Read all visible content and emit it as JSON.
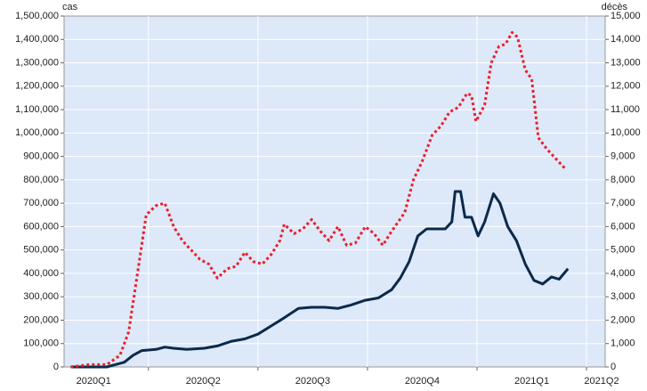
{
  "chart_data": {
    "type": "line",
    "y_label": "cas",
    "y2_label": "décès",
    "xlim": [
      0.23,
      5.17
    ],
    "xticks": [
      {
        "value": 0,
        "label": "2020Q1"
      },
      {
        "value": 1,
        "label": "2020Q2"
      },
      {
        "value": 2,
        "label": "2020Q3"
      },
      {
        "value": 3,
        "label": "2020Q4"
      },
      {
        "value": 4,
        "label": "2021Q1"
      },
      {
        "value": 5,
        "label": "2021Q2"
      }
    ],
    "ylim": [
      0,
      1500000
    ],
    "yticks": [
      0,
      {
        "value": 100000,
        "label": "100,000"
      },
      {
        "value": 200000,
        "label": "200,000"
      },
      {
        "value": 300000,
        "label": "300,000"
      },
      {
        "value": 400000,
        "label": "400,000"
      },
      {
        "value": 500000,
        "label": "500,000"
      },
      {
        "value": 600000,
        "label": "600,000"
      },
      {
        "value": 700000,
        "label": "700,000"
      },
      {
        "value": 800000,
        "label": "800,000"
      },
      {
        "value": 900000,
        "label": "900,000"
      },
      {
        "value": 1000000,
        "label": "1,000,000"
      },
      {
        "value": 1100000,
        "label": "1,100,000"
      },
      {
        "value": 1200000,
        "label": "1,200,000"
      },
      {
        "value": 1300000,
        "label": "1,300,000"
      },
      {
        "value": 1400000,
        "label": "1,400,000"
      },
      {
        "value": 1500000,
        "label": "1,500,000"
      }
    ],
    "y2lim": [
      0,
      15000
    ],
    "y2ticks": [
      0,
      {
        "value": 1000,
        "label": "1,000"
      },
      {
        "value": 2000,
        "label": "2,000"
      },
      {
        "value": 3000,
        "label": "3,000"
      },
      {
        "value": 4000,
        "label": "4,000"
      },
      {
        "value": 5000,
        "label": "5,000"
      },
      {
        "value": 6000,
        "label": "6,000"
      },
      {
        "value": 7000,
        "label": "7,000"
      },
      {
        "value": 8000,
        "label": "8,000"
      },
      {
        "value": 9000,
        "label": "9,000"
      },
      {
        "value": 10000,
        "label": "10,000"
      },
      {
        "value": 11000,
        "label": "11,000"
      },
      {
        "value": 12000,
        "label": "12,000"
      },
      {
        "value": 13000,
        "label": "13,000"
      },
      {
        "value": 14000,
        "label": "14,000"
      },
      {
        "value": 15000,
        "label": "15,000"
      }
    ],
    "grid": true,
    "series": [
      {
        "color": "#0b2a4a",
        "style": "solid",
        "x": [
          0.29,
          0.46,
          0.62,
          0.78,
          0.86,
          0.94,
          1.07,
          1.15,
          1.23,
          1.35,
          1.51,
          1.63,
          1.76,
          1.88,
          2.0,
          2.12,
          2.24,
          2.37,
          2.49,
          2.61,
          2.73,
          2.85,
          2.98,
          3.1,
          3.22,
          3.3,
          3.38,
          3.46,
          3.54,
          3.63,
          3.71,
          3.77,
          3.8,
          3.85,
          3.89,
          3.95,
          4.01,
          4.07,
          4.15,
          4.21,
          4.28,
          4.36,
          4.44,
          4.52,
          4.6,
          4.68,
          4.75,
          4.83
        ],
        "values": [
          0,
          0,
          0,
          20000,
          50000,
          70000,
          75000,
          85000,
          80000,
          75000,
          80000,
          90000,
          110000,
          120000,
          140000,
          175000,
          210000,
          250000,
          255000,
          255000,
          250000,
          265000,
          285000,
          295000,
          330000,
          380000,
          450000,
          560000,
          590000,
          590000,
          590000,
          620000,
          750000,
          750000,
          640000,
          640000,
          560000,
          620000,
          740000,
          700000,
          600000,
          540000,
          440000,
          370000,
          355000,
          385000,
          375000,
          420000
        ]
      },
      {
        "color": "#e8202a",
        "style": "dotted",
        "axis": "y2",
        "x": [
          0.29,
          0.46,
          0.62,
          0.74,
          0.82,
          0.9,
          0.98,
          1.07,
          1.15,
          1.23,
          1.31,
          1.39,
          1.47,
          1.55,
          1.63,
          1.72,
          1.8,
          1.88,
          1.96,
          2.04,
          2.12,
          2.2,
          2.24,
          2.33,
          2.41,
          2.49,
          2.57,
          2.65,
          2.73,
          2.81,
          2.89,
          2.98,
          3.06,
          3.14,
          3.22,
          3.34,
          3.42,
          3.5,
          3.59,
          3.67,
          3.75,
          3.83,
          3.91,
          3.95,
          3.99,
          4.07,
          4.13,
          4.2,
          4.26,
          4.32,
          4.37,
          4.44,
          4.5,
          4.56,
          4.64,
          4.72,
          4.8
        ],
        "values": [
          0,
          100,
          100,
          500,
          1500,
          4000,
          6500,
          6900,
          7000,
          6000,
          5400,
          5000,
          4600,
          4400,
          3800,
          4200,
          4300,
          4900,
          4500,
          4400,
          4800,
          5400,
          6100,
          5700,
          5900,
          6300,
          5800,
          5400,
          6000,
          5200,
          5300,
          6000,
          5700,
          5200,
          5800,
          6600,
          8000,
          8800,
          9900,
          10300,
          10900,
          11100,
          11700,
          11600,
          10500,
          11200,
          13000,
          13700,
          13800,
          14300,
          14100,
          12700,
          12300,
          9800,
          9300,
          8900,
          8500
        ]
      }
    ]
  }
}
